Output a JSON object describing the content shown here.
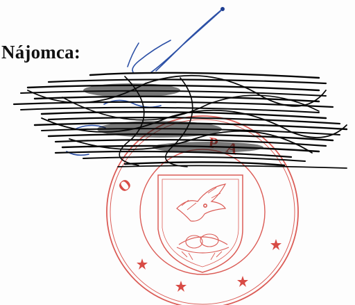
{
  "document": {
    "label": "Nájomca:",
    "stamp": {
      "kind": "round official seal",
      "visible_letters": "O  PA",
      "color": "#d9534f"
    },
    "signature": {
      "kind": "handwritten signature",
      "color": "#2a4fa8"
    },
    "redaction": {
      "kind": "black scribble redaction",
      "color": "#000000"
    }
  }
}
